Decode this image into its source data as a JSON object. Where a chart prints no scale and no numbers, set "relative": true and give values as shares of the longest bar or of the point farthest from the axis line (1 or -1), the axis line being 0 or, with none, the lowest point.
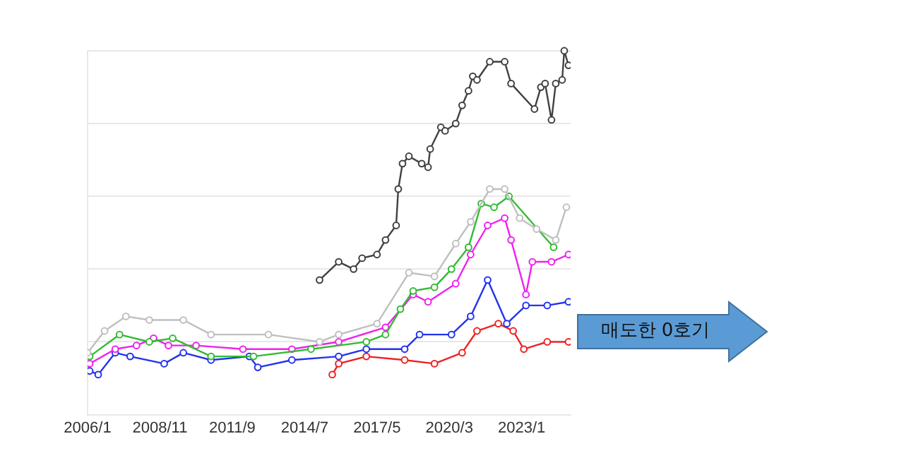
{
  "chart_data": {
    "type": "line",
    "relative": true,
    "marker": "circle",
    "line_style": "solid",
    "grid": "y",
    "legend": false,
    "xlim": [
      "2006-01",
      "2024-12"
    ],
    "xticks": [
      {
        "value": "2006-01",
        "label": "2006/1"
      },
      {
        "value": "2008-11",
        "label": "2008/11"
      },
      {
        "value": "2011-09",
        "label": "2011/9"
      },
      {
        "value": "2014-07",
        "label": "2014/7"
      },
      {
        "value": "2017-05",
        "label": "2017/5"
      },
      {
        "value": "2020-03",
        "label": "2020/3"
      },
      {
        "value": "2023-01",
        "label": "2023/1"
      }
    ],
    "annotations": [
      "매도한 0호기"
    ],
    "series": [
      {
        "color": "#bfbfbf",
        "x": [
          "2006-01",
          "2006-09",
          "2007-07",
          "2008-06",
          "2009-10",
          "2010-11",
          "2013-02",
          "2015-02",
          "2015-11",
          "2017-05",
          "2018-08",
          "2019-08",
          "2020-06",
          "2021-01",
          "2021-10",
          "2022-05",
          "2022-12",
          "2023-08",
          "2024-05",
          "2024-10"
        ],
        "values": [
          0.17,
          0.23,
          0.27,
          0.26,
          0.26,
          0.22,
          0.22,
          0.2,
          0.22,
          0.25,
          0.39,
          0.38,
          0.47,
          0.53,
          0.62,
          0.62,
          0.54,
          0.51,
          0.48,
          0.57
        ]
      },
      {
        "color": "#404040",
        "x": [
          "2015-02",
          "2015-11",
          "2016-06",
          "2016-10",
          "2017-05",
          "2017-09",
          "2018-02",
          "2018-03",
          "2018-05",
          "2018-08",
          "2019-02",
          "2019-05",
          "2019-06",
          "2019-11",
          "2020-01",
          "2020-06",
          "2020-09",
          "2020-12",
          "2021-02",
          "2021-04",
          "2021-10",
          "2022-05",
          "2022-08",
          "2023-07",
          "2023-10",
          "2023-12",
          "2024-03",
          "2024-05",
          "2024-08",
          "2024-09",
          "2024-11"
        ],
        "values": [
          0.37,
          0.42,
          0.4,
          0.43,
          0.44,
          0.48,
          0.52,
          0.62,
          0.69,
          0.71,
          0.69,
          0.68,
          0.73,
          0.79,
          0.78,
          0.8,
          0.85,
          0.89,
          0.93,
          0.92,
          0.97,
          0.97,
          0.91,
          0.84,
          0.9,
          0.91,
          0.81,
          0.91,
          0.92,
          1,
          0.96
        ]
      },
      {
        "color": "#33bb33",
        "x": [
          "2006-02",
          "2007-04",
          "2008-06",
          "2009-05",
          "2010-11",
          "2012-07",
          "2014-10",
          "2016-12",
          "2017-09",
          "2018-04",
          "2018-10",
          "2019-08",
          "2020-04",
          "2020-12",
          "2021-06",
          "2021-12",
          "2022-07",
          "2024-04"
        ],
        "values": [
          0.16,
          0.22,
          0.2,
          0.21,
          0.16,
          0.16,
          0.18,
          0.2,
          0.22,
          0.29,
          0.34,
          0.35,
          0.4,
          0.46,
          0.58,
          0.57,
          0.6,
          0.46
        ]
      },
      {
        "color": "#ee22ee",
        "x": [
          "2006-02",
          "2007-02",
          "2007-12",
          "2008-08",
          "2009-03",
          "2010-04",
          "2012-02",
          "2014-01",
          "2015-11",
          "2017-09",
          "2018-10",
          "2019-05",
          "2020-06",
          "2021-01",
          "2021-09",
          "2022-05",
          "2022-08",
          "2023-03",
          "2023-06",
          "2024-03",
          "2024-11"
        ],
        "values": [
          0.14,
          0.18,
          0.19,
          0.21,
          0.19,
          0.19,
          0.18,
          0.18,
          0.2,
          0.24,
          0.33,
          0.31,
          0.36,
          0.44,
          0.52,
          0.54,
          0.48,
          0.33,
          0.42,
          0.42,
          0.44
        ]
      },
      {
        "color": "#2233ee",
        "x": [
          "2006-02",
          "2006-06",
          "2007-02",
          "2007-09",
          "2009-01",
          "2009-10",
          "2010-11",
          "2012-05",
          "2012-09",
          "2014-01",
          "2015-11",
          "2016-12",
          "2018-06",
          "2019-01",
          "2020-04",
          "2021-01",
          "2021-09",
          "2022-06",
          "2023-03",
          "2024-01",
          "2024-11"
        ],
        "values": [
          0.12,
          0.11,
          0.17,
          0.16,
          0.14,
          0.17,
          0.15,
          0.16,
          0.13,
          0.15,
          0.16,
          0.18,
          0.18,
          0.22,
          0.22,
          0.27,
          0.37,
          0.25,
          0.3,
          0.3,
          0.31
        ]
      },
      {
        "color": "#ee2222",
        "x": [
          "2015-08",
          "2015-11",
          "2016-12",
          "2018-06",
          "2019-08",
          "2020-09",
          "2021-04",
          "2022-02",
          "2022-09",
          "2023-02",
          "2024-01",
          "2024-11"
        ],
        "values": [
          0.11,
          0.14,
          0.16,
          0.15,
          0.14,
          0.17,
          0.23,
          0.25,
          0.23,
          0.18,
          0.2,
          0.2
        ]
      }
    ]
  }
}
